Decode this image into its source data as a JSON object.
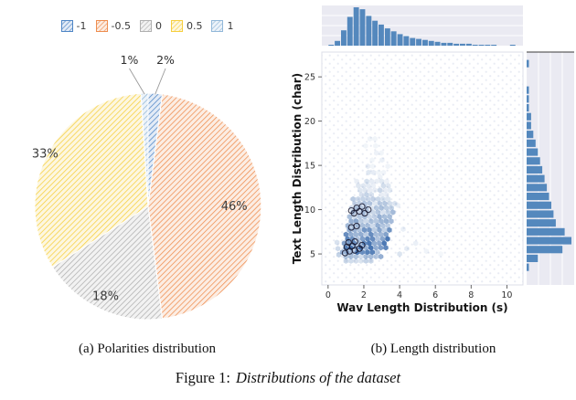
{
  "captions": {
    "a": "(a) Polarities distribution",
    "b": "(b) Length distribution",
    "figure_prefix": "Figure 1:",
    "figure_title": "Distributions of the dataset"
  },
  "chart_data": [
    {
      "type": "pie",
      "title": "(a) Polarities distribution",
      "categories": [
        "-1",
        "-0.5",
        "0",
        "0.5",
        "1"
      ],
      "values": [
        2,
        46,
        18,
        33,
        1
      ],
      "pct_labels": [
        "2%",
        "46%",
        "18%",
        "33%",
        "1%"
      ],
      "colors": [
        "#4f86c6",
        "#ee8d4f",
        "#b0b0b0",
        "#f6cf3f",
        "#92b8d9"
      ],
      "label_placement": [
        "outside",
        0.76,
        0.88,
        1.02,
        "outside"
      ],
      "start_angle": "top",
      "direction": "clockwise",
      "legend_position": "top",
      "hatch": true
    },
    {
      "type": "hexbin_joint",
      "title": "(b) Length distribution",
      "xlabel": "Wav Length Distribution (s)",
      "ylabel": "Text Length Distribution (char)",
      "x_ticks": [
        0,
        2,
        4,
        6,
        8,
        10
      ],
      "y_ticks": [
        5,
        10,
        15,
        20,
        25
      ],
      "x_range": [
        -0.35,
        10.9
      ],
      "y_range": [
        1.5,
        27.8
      ],
      "hex_color": "#3f6fae",
      "bar_color": "#5488bd",
      "marginal_bg": "#eaeaf2",
      "top_hist": {
        "bin_start": 0,
        "bin_width": 0.35,
        "counts": [
          1,
          5,
          16,
          30,
          40,
          38,
          31,
          26,
          22,
          18,
          15,
          12,
          10,
          8,
          7,
          6,
          5,
          4,
          3,
          3,
          2,
          2,
          2,
          1,
          1,
          1,
          1,
          0,
          0,
          1
        ]
      },
      "right_hist": {
        "bin_start": 2,
        "bin_width": 1,
        "counts": [
          0,
          1,
          5,
          16,
          20,
          17,
          13,
          12,
          11,
          10,
          9,
          8,
          7,
          6,
          5,
          4,
          3,
          2,
          2,
          1,
          1,
          1,
          0,
          0,
          1
        ]
      },
      "density_rows": [
        [
          4.2,
          1.0,
          2.5,
          0.25
        ],
        [
          4.7,
          0.85,
          2.9,
          0.45
        ],
        [
          5.2,
          0.8,
          3.0,
          0.7
        ],
        [
          5.7,
          0.85,
          3.1,
          0.85
        ],
        [
          6.2,
          0.9,
          3.2,
          0.8
        ],
        [
          6.7,
          0.95,
          3.3,
          0.7
        ],
        [
          7.2,
          1.0,
          3.4,
          0.62
        ],
        [
          7.7,
          1.05,
          3.45,
          0.56
        ],
        [
          8.2,
          1.1,
          3.5,
          0.5
        ],
        [
          8.7,
          1.15,
          3.55,
          0.46
        ],
        [
          9.2,
          1.2,
          3.6,
          0.42
        ],
        [
          9.7,
          1.25,
          3.65,
          0.38
        ],
        [
          10.2,
          1.3,
          3.7,
          0.34
        ],
        [
          10.7,
          1.35,
          3.65,
          0.3
        ],
        [
          11.2,
          1.4,
          3.6,
          0.27
        ],
        [
          11.7,
          1.45,
          3.6,
          0.24
        ],
        [
          12.2,
          1.5,
          3.55,
          0.21
        ],
        [
          12.7,
          1.55,
          3.5,
          0.18
        ],
        [
          13.2,
          1.6,
          3.45,
          0.16
        ],
        [
          13.7,
          1.65,
          3.4,
          0.14
        ],
        [
          14.2,
          1.7,
          3.3,
          0.12
        ],
        [
          14.9,
          1.8,
          3.2,
          0.1
        ],
        [
          15.6,
          1.9,
          3.1,
          0.09
        ],
        [
          16.4,
          2.0,
          3.0,
          0.08
        ],
        [
          17.2,
          2.1,
          2.8,
          0.07
        ],
        [
          18.0,
          2.2,
          2.7,
          0.06
        ]
      ],
      "extra_hexes": [
        [
          4.0,
          5.0,
          0.18
        ],
        [
          4.4,
          5.6,
          0.14
        ],
        [
          4.9,
          6.2,
          0.1
        ],
        [
          4.2,
          7.8,
          0.1
        ],
        [
          5.5,
          5.3,
          0.08
        ],
        [
          6.3,
          5.0,
          0.06
        ],
        [
          3.9,
          10.5,
          0.1
        ],
        [
          0.6,
          4.9,
          0.3
        ],
        [
          0.55,
          5.6,
          0.25
        ],
        [
          0.5,
          6.3,
          0.2
        ]
      ],
      "ring_markers": [
        [
          0.95,
          5.1
        ],
        [
          1.2,
          5.3
        ],
        [
          1.5,
          5.4
        ],
        [
          1.05,
          5.8
        ],
        [
          1.35,
          5.9
        ],
        [
          1.75,
          5.6
        ],
        [
          1.15,
          6.3
        ],
        [
          1.5,
          6.4
        ],
        [
          1.9,
          6.0
        ],
        [
          1.3,
          8.0
        ],
        [
          1.6,
          8.15
        ],
        [
          1.45,
          9.6
        ],
        [
          1.75,
          9.8
        ],
        [
          2.05,
          9.6
        ],
        [
          1.6,
          10.2
        ],
        [
          1.9,
          10.35
        ],
        [
          2.25,
          10.0
        ],
        [
          1.3,
          9.9
        ]
      ]
    }
  ]
}
